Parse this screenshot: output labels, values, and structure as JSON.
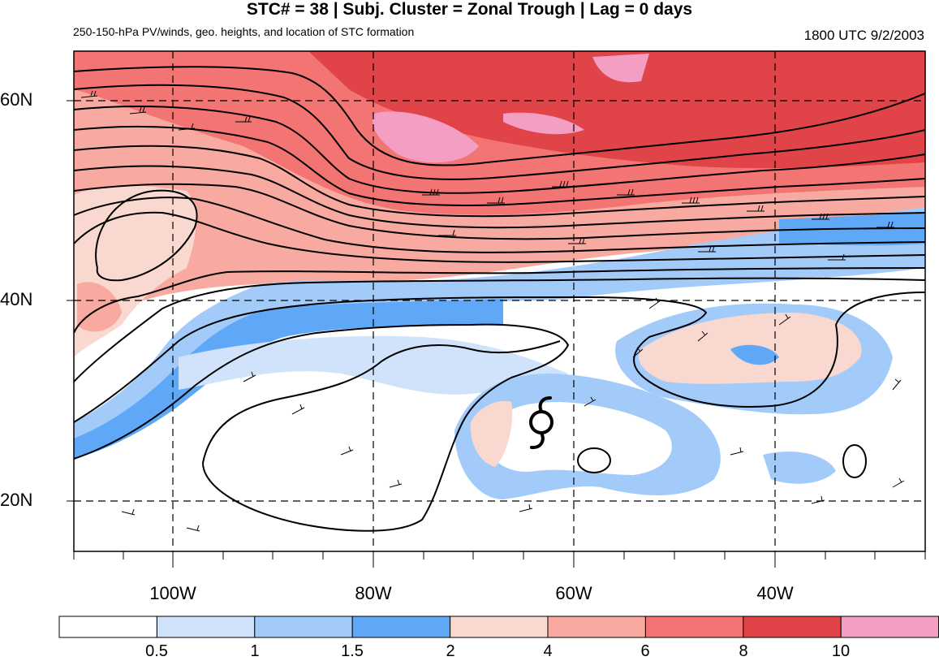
{
  "header": {
    "title": "STC# = 38 | Subj. Cluster = Zonal Trough | Lag = 0 days",
    "subtitle": "250-150-hPa PV/winds, geo. heights, and location of STC formation",
    "datetime": "1800 UTC  9/2/2003"
  },
  "map": {
    "lat_labels": [
      "60N",
      "40N",
      "20N"
    ],
    "lon_labels": [
      "100W",
      "80W",
      "60W",
      "40W"
    ],
    "storm_symbol": "tropical-cyclone-icon",
    "colors": {
      "frame": "#000000",
      "gridline": "#000000",
      "contour": "#000000"
    }
  },
  "colorbar": {
    "labels": [
      "0.5",
      "1",
      "1.5",
      "2",
      "4",
      "6",
      "8",
      "10"
    ],
    "colors": [
      "#ffffff",
      "#d1e3fb",
      "#a3cbfa",
      "#5fa8f8",
      "#f9d8cf",
      "#f8a9a0",
      "#f27473",
      "#e04448",
      "#f49ec4"
    ]
  }
}
